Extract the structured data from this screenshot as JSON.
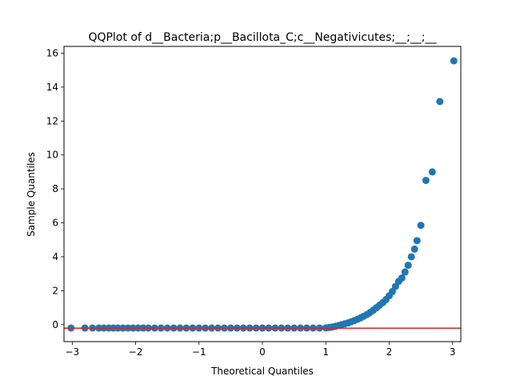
{
  "chart_data": {
    "type": "scatter",
    "title": "QQPlot of d__Bacteria;p__Bacillota_C;c__Negativicutes;__;__;__",
    "xlabel": "Theoretical Quantiles",
    "ylabel": "Sample Quantiles",
    "xlim": [
      -3.13,
      3.13
    ],
    "ylim": [
      -1.0,
      16.4
    ],
    "x_ticks": [
      -3,
      -2,
      -1,
      0,
      1,
      2,
      3
    ],
    "x_tick_labels": [
      "−3",
      "−2",
      "−1",
      "0",
      "1",
      "2",
      "3"
    ],
    "y_ticks": [
      0,
      2,
      4,
      6,
      8,
      10,
      12,
      14,
      16
    ],
    "y_tick_labels": [
      "0",
      "2",
      "4",
      "6",
      "8",
      "10",
      "12",
      "14",
      "16"
    ],
    "grid": false,
    "baseline": -0.21,
    "series": [
      {
        "marker_color": "#1f77b4",
        "points": [
          [
            -3.02,
            -0.2
          ],
          [
            -2.8,
            -0.2
          ],
          [
            -2.68,
            -0.2
          ],
          [
            -2.58,
            -0.2
          ],
          [
            -2.5,
            -0.2
          ],
          [
            -2.42,
            -0.2
          ],
          [
            -2.35,
            -0.2
          ],
          [
            -2.28,
            -0.2
          ],
          [
            -2.2,
            -0.2
          ],
          [
            -2.12,
            -0.2
          ],
          [
            -2.04,
            -0.2
          ],
          [
            -1.96,
            -0.2
          ],
          [
            -1.88,
            -0.2
          ],
          [
            -1.8,
            -0.2
          ],
          [
            -1.7,
            -0.2
          ],
          [
            -1.6,
            -0.2
          ],
          [
            -1.5,
            -0.2
          ],
          [
            -1.4,
            -0.2
          ],
          [
            -1.3,
            -0.2
          ],
          [
            -1.2,
            -0.2
          ],
          [
            -1.1,
            -0.2
          ],
          [
            -1.0,
            -0.2
          ],
          [
            -0.9,
            -0.2
          ],
          [
            -0.8,
            -0.2
          ],
          [
            -0.7,
            -0.2
          ],
          [
            -0.6,
            -0.2
          ],
          [
            -0.5,
            -0.2
          ],
          [
            -0.4,
            -0.2
          ],
          [
            -0.3,
            -0.2
          ],
          [
            -0.2,
            -0.2
          ],
          [
            -0.1,
            -0.2
          ],
          [
            0.0,
            -0.2
          ],
          [
            0.1,
            -0.2
          ],
          [
            0.2,
            -0.2
          ],
          [
            0.3,
            -0.2
          ],
          [
            0.4,
            -0.2
          ],
          [
            0.5,
            -0.2
          ],
          [
            0.6,
            -0.2
          ],
          [
            0.7,
            -0.2
          ],
          [
            0.8,
            -0.2
          ],
          [
            0.9,
            -0.2
          ],
          [
            1.0,
            -0.19
          ],
          [
            1.05,
            -0.17
          ],
          [
            1.1,
            -0.14
          ],
          [
            1.15,
            -0.1
          ],
          [
            1.2,
            -0.05
          ],
          [
            1.25,
            0.0
          ],
          [
            1.3,
            0.05
          ],
          [
            1.35,
            0.1
          ],
          [
            1.4,
            0.17
          ],
          [
            1.45,
            0.24
          ],
          [
            1.5,
            0.32
          ],
          [
            1.55,
            0.4
          ],
          [
            1.6,
            0.5
          ],
          [
            1.65,
            0.6
          ],
          [
            1.7,
            0.72
          ],
          [
            1.75,
            0.85
          ],
          [
            1.8,
            1.0
          ],
          [
            1.85,
            1.15
          ],
          [
            1.9,
            1.3
          ],
          [
            1.95,
            1.48
          ],
          [
            2.0,
            1.7
          ],
          [
            2.05,
            1.95
          ],
          [
            2.1,
            2.25
          ],
          [
            2.15,
            2.55
          ],
          [
            2.2,
            2.75
          ],
          [
            2.25,
            3.1
          ],
          [
            2.3,
            3.5
          ],
          [
            2.35,
            4.0
          ],
          [
            2.4,
            4.45
          ],
          [
            2.44,
            4.95
          ],
          [
            2.5,
            5.85
          ],
          [
            2.58,
            8.5
          ],
          [
            2.68,
            9.0
          ],
          [
            2.8,
            13.15
          ],
          [
            3.02,
            15.55
          ]
        ]
      }
    ]
  }
}
